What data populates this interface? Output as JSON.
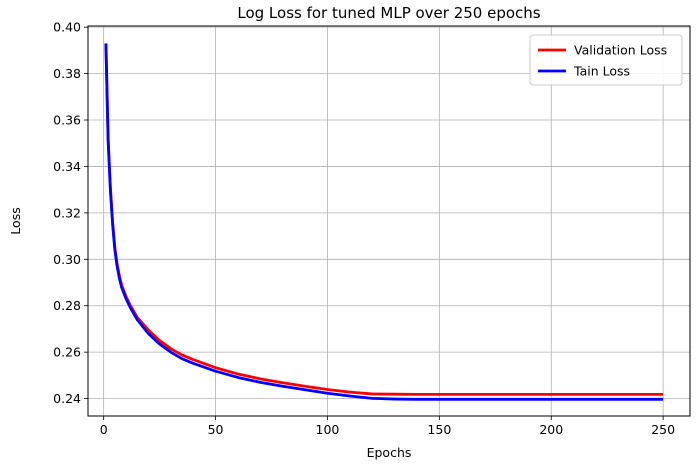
{
  "chart_data": {
    "type": "line",
    "title": "Log Loss for tuned MLP over 250 epochs",
    "xlabel": "Epochs",
    "ylabel": "Loss",
    "xlim": [
      -7,
      262
    ],
    "ylim": [
      0.2325,
      0.4005
    ],
    "xticks": [
      0,
      50,
      100,
      150,
      200,
      250
    ],
    "yticks": [
      0.24,
      0.26,
      0.28,
      0.3,
      0.32,
      0.34,
      0.36,
      0.38,
      0.4
    ],
    "ytick_labels": [
      "0.24",
      "0.26",
      "0.28",
      "0.30",
      "0.32",
      "0.34",
      "0.36",
      "0.38",
      "0.40"
    ],
    "grid": true,
    "legend_position": "top-right",
    "series": [
      {
        "name": "Validation Loss",
        "color": "#ff0000",
        "x": [
          1,
          2,
          3,
          4,
          5,
          6,
          7,
          8,
          10,
          12,
          15,
          20,
          25,
          30,
          35,
          40,
          50,
          60,
          70,
          80,
          90,
          100,
          110,
          120,
          130,
          140,
          150,
          175,
          200,
          225,
          250
        ],
        "y": [
          0.393,
          0.352,
          0.331,
          0.316,
          0.305,
          0.298,
          0.293,
          0.289,
          0.284,
          0.28,
          0.275,
          0.2695,
          0.265,
          0.2615,
          0.2588,
          0.2568,
          0.2533,
          0.2506,
          0.2485,
          0.2468,
          0.2453,
          0.2439,
          0.2428,
          0.242,
          0.2419,
          0.2418,
          0.2418,
          0.2418,
          0.2418,
          0.2418,
          0.2418
        ]
      },
      {
        "name": "Tain Loss",
        "color": "#0000ff",
        "x": [
          1,
          2,
          3,
          4,
          5,
          6,
          7,
          8,
          10,
          12,
          15,
          20,
          25,
          30,
          35,
          40,
          50,
          60,
          70,
          80,
          90,
          100,
          110,
          120,
          130,
          140,
          150,
          175,
          200,
          225,
          250
        ],
        "y": [
          0.393,
          0.351,
          0.33,
          0.315,
          0.304,
          0.297,
          0.292,
          0.288,
          0.283,
          0.279,
          0.274,
          0.268,
          0.2635,
          0.26,
          0.2572,
          0.2552,
          0.2518,
          0.2491,
          0.247,
          0.2453,
          0.2438,
          0.2423,
          0.2411,
          0.2401,
          0.2398,
          0.2397,
          0.2397,
          0.2397,
          0.2397,
          0.2397,
          0.2397
        ]
      }
    ]
  }
}
